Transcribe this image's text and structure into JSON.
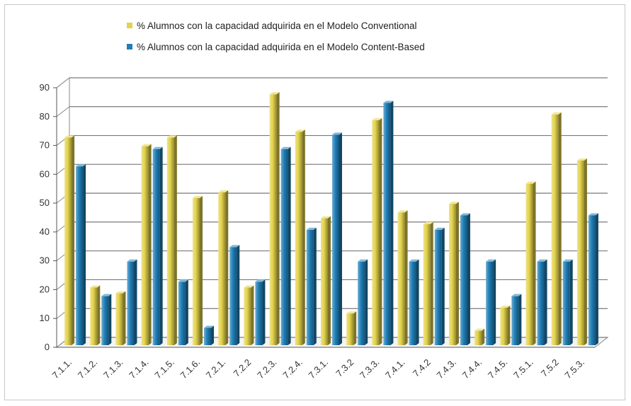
{
  "chart_data": {
    "type": "bar",
    "categories": [
      "7.1.1.",
      "7.1.2.",
      "7.1.3.",
      "7.1.4.",
      "7.1.5.",
      "7.1.6.",
      "7.2.1.",
      "7.2.2",
      "7.2.3.",
      "7.2.4.",
      "7.3.1.",
      "7.3.2",
      "7.3.3.",
      "7.4.1.",
      "7.4.2",
      "7.4.3.",
      "7.4.4.",
      "7.4.5.",
      "7.5.1.",
      "7.5.2",
      "7.5.3."
    ],
    "series": [
      {
        "name": "% Alumnos con la capacidad adquirida en el Modelo Conventional",
        "color": "#e3d34a",
        "values": [
          72,
          20,
          18,
          69,
          72,
          51,
          53,
          20,
          87,
          74,
          44,
          11,
          78,
          46,
          42,
          49,
          5,
          13,
          56,
          80,
          64
        ]
      },
      {
        "name": "% Alumnos con la capacidad adquirida en el Modelo Content-Based",
        "color": "#1f7fb8",
        "values": [
          62,
          17,
          29,
          68,
          22,
          6,
          34,
          22,
          68,
          40,
          73,
          29,
          84,
          29,
          40,
          45,
          29,
          17,
          29,
          29,
          45
        ]
      }
    ],
    "yticks": [
      "0",
      "10",
      "20",
      "30",
      "40",
      "50",
      "60",
      "70",
      "80",
      "90"
    ],
    "ylim": [
      0,
      90
    ],
    "grid": true,
    "legend_position": "top-center",
    "title": "",
    "xlabel": "",
    "ylabel": ""
  }
}
